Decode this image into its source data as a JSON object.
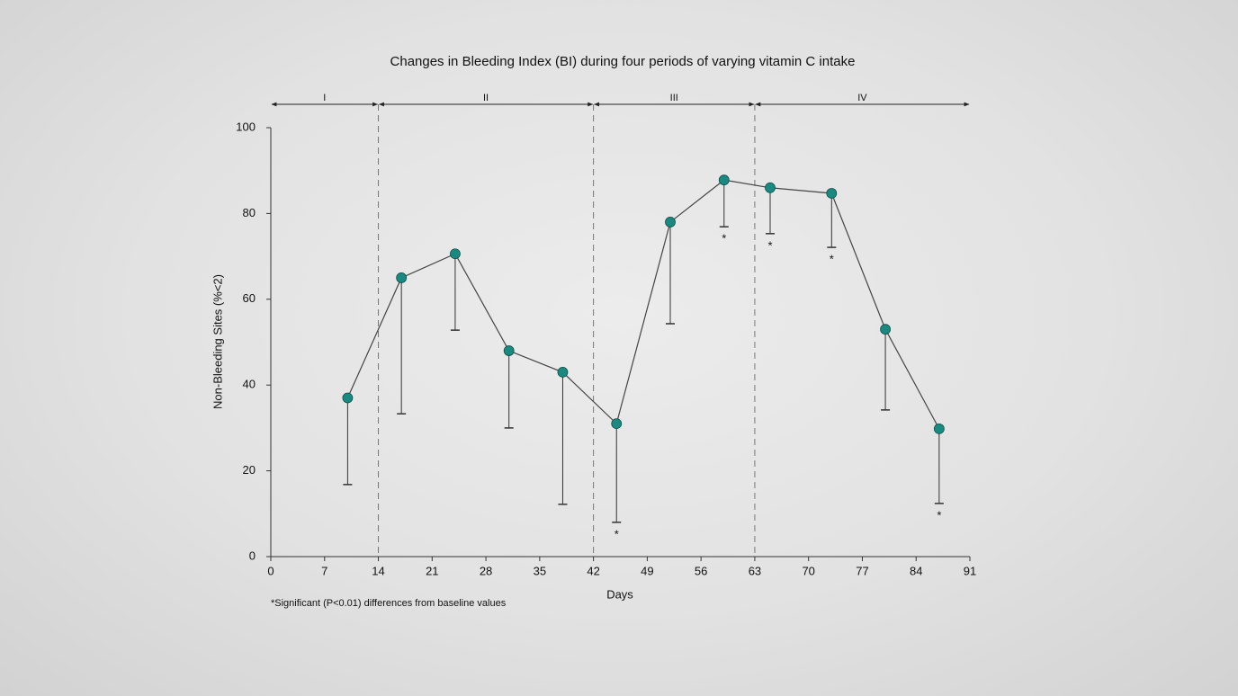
{
  "chart_data": {
    "type": "line",
    "title": "Changes in Bleeding Index (BI) during four periods of varying vitamin C intake",
    "x_label": "Days",
    "y_label": "Non-Bleeding Sites (%<2)",
    "footnote": "*Significant (P<0.01) differences from baseline values",
    "x": [
      10,
      17,
      24,
      31,
      38,
      45,
      52,
      59,
      65,
      73,
      80,
      87
    ],
    "series": [
      {
        "color": "#1a8a80",
        "values": [
          37,
          65,
          70.6,
          48,
          43,
          31,
          78,
          87.8,
          86,
          84.7,
          53,
          29.8
        ],
        "errors": [
          20.2,
          31.7,
          17.8,
          18,
          30.8,
          23,
          23.7,
          10.9,
          10.7,
          12.6,
          18.8,
          17.4
        ],
        "point_labels": [
          null,
          null,
          null,
          null,
          null,
          "*",
          null,
          "*",
          "*",
          "*",
          null,
          "*"
        ]
      }
    ],
    "periods": [
      {
        "label": "I",
        "start": 0,
        "end": 14
      },
      {
        "label": "II",
        "start": 14,
        "end": 42
      },
      {
        "label": "III",
        "start": 42,
        "end": 63
      },
      {
        "label": "IV",
        "start": 63,
        "end": 91
      }
    ],
    "xlim": [
      0,
      91
    ],
    "xticks": [
      0,
      7,
      14,
      21,
      28,
      35,
      42,
      49,
      56,
      63,
      70,
      77,
      84,
      91
    ],
    "ylim": [
      0,
      100
    ],
    "yticks": [
      0,
      20,
      40,
      60,
      80,
      100
    ]
  }
}
